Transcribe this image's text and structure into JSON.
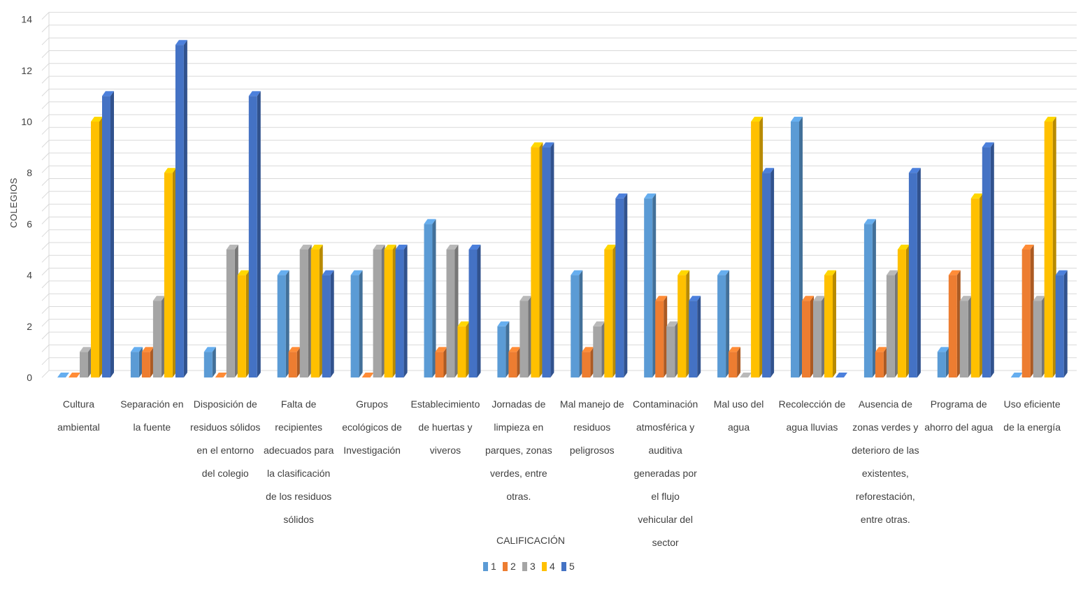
{
  "chart_data": {
    "type": "bar",
    "title": "",
    "xlabel": "CALIFICACIÓN",
    "ylabel": "COLEGIOS",
    "ylim": [
      0,
      14
    ],
    "yticks": [
      "0",
      "2",
      "4",
      "6",
      "8",
      "10",
      "12",
      "14"
    ],
    "grid": true,
    "legend_position": "bottom",
    "categories": [
      "Cultura ambiental",
      "Separación en la fuente",
      "Disposición de residuos sólidos en el entorno del colegio",
      "Falta de recipientes adecuados para la clasificación de los residuos sólidos",
      "Grupos ecológicos de Investigación",
      "Establecimiento de huertas y viveros",
      "Jornadas de limpieza en parques, zonas verdes, entre otras.",
      "Mal manejo de residuos peligrosos",
      "Contaminación atmosférica y auditiva generadas por el flujo vehicular del sector",
      "Mal uso del agua",
      "Recolección de agua lluvias",
      "Ausencia de zonas verdes y deterioro de las existentes, reforestación, entre otras.",
      "Programa de ahorro del agua",
      "Uso eficiente de la energía"
    ],
    "category_lines": [
      [
        "Cultura",
        "ambiental"
      ],
      [
        "Separación en",
        "la fuente"
      ],
      [
        "Disposición de",
        "residuos sólidos",
        "en el entorno",
        "del colegio"
      ],
      [
        "Falta de",
        "recipientes",
        "adecuados para",
        "la clasificación",
        "de los residuos",
        "sólidos"
      ],
      [
        "Grupos",
        "ecológicos de",
        "Investigación"
      ],
      [
        "Establecimiento",
        "de huertas y",
        "viveros"
      ],
      [
        "Jornadas de",
        "limpieza en",
        "parques, zonas",
        "verdes, entre",
        "otras."
      ],
      [
        "Mal manejo de",
        "residuos",
        "peligrosos"
      ],
      [
        "Contaminación",
        "atmosférica y",
        "auditiva",
        "generadas por",
        "el flujo",
        "vehicular del",
        "sector"
      ],
      [
        "Mal uso del",
        "agua"
      ],
      [
        "Recolección de",
        "agua lluvias"
      ],
      [
        "Ausencia de",
        "zonas verdes y",
        "deterioro de las",
        "existentes,",
        "reforestación,",
        "entre otras."
      ],
      [
        "Programa de",
        "ahorro del agua"
      ],
      [
        "Uso eficiente",
        "de la energía"
      ]
    ],
    "series": [
      {
        "name": "1",
        "color": "#5b9bd5",
        "values": [
          0,
          1,
          1,
          4,
          4,
          6,
          2,
          4,
          7,
          4,
          10,
          6,
          1,
          0
        ]
      },
      {
        "name": "2",
        "color": "#ed7d31",
        "values": [
          0,
          1,
          0,
          1,
          0,
          1,
          1,
          1,
          3,
          1,
          3,
          1,
          4,
          5
        ]
      },
      {
        "name": "3",
        "color": "#a5a5a5",
        "values": [
          1,
          3,
          5,
          5,
          5,
          5,
          3,
          2,
          2,
          0,
          3,
          4,
          3,
          3
        ]
      },
      {
        "name": "4",
        "color": "#ffc000",
        "values": [
          10,
          8,
          4,
          5,
          5,
          2,
          9,
          5,
          4,
          10,
          4,
          5,
          7,
          10
        ]
      },
      {
        "name": "5",
        "color": "#4472c4",
        "values": [
          11,
          13,
          11,
          4,
          5,
          5,
          9,
          7,
          3,
          8,
          0,
          8,
          9,
          4
        ]
      }
    ]
  }
}
